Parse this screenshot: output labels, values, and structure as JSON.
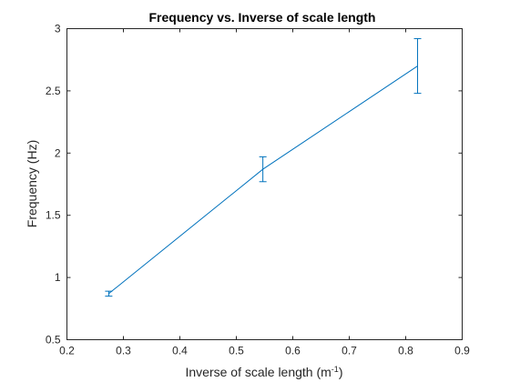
{
  "chart_data": {
    "type": "line",
    "title": "Frequency vs. Inverse of scale length",
    "xlabel": "Inverse of scale length (m",
    "xlabel_sup": "-1",
    "xlabel_end": ")",
    "ylabel": "Frequency (Hz)",
    "xlim": [
      0.2,
      0.9
    ],
    "ylim": [
      0.5,
      3
    ],
    "xticks": [
      0.2,
      0.3,
      0.4,
      0.5,
      0.6,
      0.7,
      0.8,
      0.9
    ],
    "xtick_labels": [
      "0.2",
      "0.3",
      "0.4",
      "0.5",
      "0.6",
      "0.7",
      "0.8",
      "0.9"
    ],
    "yticks": [
      0.5,
      1,
      1.5,
      2,
      2.5,
      3
    ],
    "ytick_labels": [
      "0.5",
      "1",
      "1.5",
      "2",
      "2.5",
      "3"
    ],
    "grid": false,
    "legend": "none",
    "series": [
      {
        "color": "#0072BD",
        "x": [
          0.274,
          0.547,
          0.821
        ],
        "y": [
          0.87,
          1.87,
          2.7
        ],
        "err": [
          0.02,
          0.1,
          0.22
        ]
      }
    ]
  }
}
